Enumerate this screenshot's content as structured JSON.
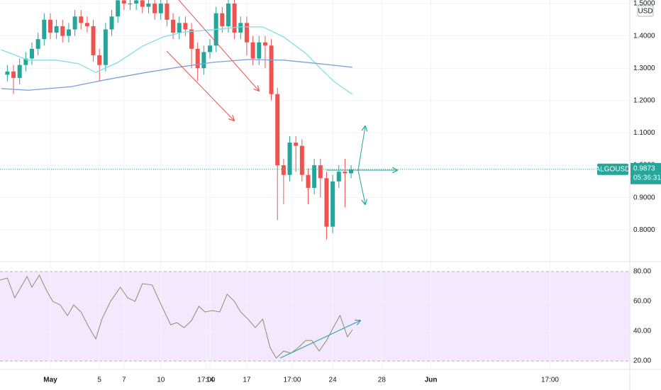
{
  "chart_data": [
    {
      "type": "candlestick",
      "symbol": "ALGOUSD",
      "currency": "USD",
      "last_price": 0.9873,
      "countdown": "05:36:31",
      "up_color": "#26a69a",
      "down_color": "#ef5350",
      "xlim": [
        -3.1,
        48.2
      ],
      "ylim": [
        0.704,
        1.511
      ],
      "yticks": [
        {
          "value": 1.5,
          "label": "1.5000"
        },
        {
          "value": 1.4,
          "label": "1.4000"
        },
        {
          "value": 1.3,
          "label": "1.3000"
        },
        {
          "value": 1.2,
          "label": "1.2000"
        },
        {
          "value": 1.1,
          "label": "1.1000"
        },
        {
          "value": 1.0,
          "label": "1.0000"
        },
        {
          "value": 0.9,
          "label": "0.9000"
        },
        {
          "value": 0.8,
          "label": "0.8000"
        }
      ],
      "x": [
        -2.5,
        -2,
        -1.5,
        -1,
        -0.5,
        0,
        0.5,
        1,
        1.5,
        2,
        2.5,
        3,
        3.5,
        4,
        4.5,
        5,
        5.5,
        6,
        6.5,
        7,
        7.5,
        8,
        8.5,
        9,
        9.5,
        10,
        10.5,
        11,
        11.5,
        12,
        12.5,
        13,
        13.5,
        14,
        14.5,
        15,
        15.5,
        16,
        16.5,
        17,
        17.5,
        18,
        18.5,
        19,
        19.5,
        20,
        20.5,
        21,
        21.5,
        22,
        22.5,
        23,
        23.5,
        24,
        24.5,
        25,
        25.5
      ],
      "open": [
        1.28,
        1.29,
        1.27,
        1.31,
        1.33,
        1.36,
        1.39,
        1.45,
        1.41,
        1.43,
        1.4,
        1.42,
        1.46,
        1.44,
        1.43,
        1.34,
        1.31,
        1.42,
        1.46,
        1.51,
        1.5,
        1.5,
        1.51,
        1.49,
        1.5,
        1.47,
        1.5,
        1.45,
        1.41,
        1.44,
        1.42,
        1.36,
        1.3,
        1.35,
        1.37,
        1.47,
        1.43,
        1.5,
        1.41,
        1.44,
        1.38,
        1.33,
        1.38,
        1.37,
        1.22,
        1.0,
        0.97,
        1.07,
        1.06,
        0.97,
        0.93,
        1.0,
        0.96,
        0.81,
        0.95,
        0.98,
        0.975
      ],
      "high": [
        1.31,
        1.31,
        1.33,
        1.35,
        1.38,
        1.41,
        1.47,
        1.47,
        1.45,
        1.45,
        1.44,
        1.48,
        1.48,
        1.46,
        1.45,
        1.36,
        1.44,
        1.48,
        1.53,
        1.53,
        1.53,
        1.53,
        1.53,
        1.52,
        1.52,
        1.52,
        1.52,
        1.47,
        1.46,
        1.46,
        1.44,
        1.38,
        1.37,
        1.39,
        1.49,
        1.49,
        1.52,
        1.52,
        1.46,
        1.46,
        1.4,
        1.4,
        1.4,
        1.39,
        1.24,
        1.02,
        1.09,
        1.09,
        1.08,
        0.99,
        1.02,
        1.02,
        0.98,
        0.97,
        1.0,
        1.02,
        1.0
      ],
      "low": [
        1.26,
        1.22,
        1.25,
        1.29,
        1.31,
        1.34,
        1.37,
        1.39,
        1.39,
        1.38,
        1.38,
        1.4,
        1.42,
        1.41,
        1.32,
        1.26,
        1.29,
        1.4,
        1.44,
        1.48,
        1.48,
        1.48,
        1.47,
        1.47,
        1.45,
        1.45,
        1.43,
        1.39,
        1.39,
        1.4,
        1.3,
        1.26,
        1.28,
        1.33,
        1.35,
        1.41,
        1.41,
        1.39,
        1.39,
        1.34,
        1.31,
        1.31,
        1.3,
        1.2,
        0.83,
        0.88,
        0.95,
        0.98,
        0.95,
        0.88,
        0.91,
        0.9,
        0.77,
        0.79,
        0.93,
        0.87,
        0.96
      ],
      "close": [
        1.29,
        1.27,
        1.31,
        1.33,
        1.36,
        1.39,
        1.45,
        1.41,
        1.43,
        1.4,
        1.42,
        1.46,
        1.44,
        1.43,
        1.34,
        1.31,
        1.42,
        1.46,
        1.51,
        1.5,
        1.5,
        1.51,
        1.49,
        1.5,
        1.47,
        1.5,
        1.45,
        1.41,
        1.44,
        1.42,
        1.36,
        1.3,
        1.35,
        1.37,
        1.47,
        1.43,
        1.5,
        1.41,
        1.44,
        1.38,
        1.33,
        1.38,
        1.37,
        1.22,
        1.0,
        0.97,
        1.07,
        1.06,
        0.97,
        0.93,
        1.0,
        0.96,
        0.81,
        0.95,
        0.98,
        0.975,
        0.987
      ],
      "series": [
        {
          "color": "#80deea",
          "x": [
            -3,
            -0.8,
            1.5,
            3.3,
            4.7,
            6.5,
            8.5,
            10.2,
            11.9,
            14.2,
            16.5,
            18.3,
            20,
            21.8,
            22.9,
            24.1,
            25.6
          ],
          "values": [
            1.357,
            1.325,
            1.325,
            1.314,
            1.287,
            1.318,
            1.368,
            1.397,
            1.412,
            1.419,
            1.428,
            1.428,
            1.397,
            1.346,
            1.303,
            1.259,
            1.219
          ]
        },
        {
          "color": "#7e9fd6",
          "x": [
            -3,
            -0.8,
            2.7,
            5.6,
            8.5,
            11.4,
            14.2,
            17.1,
            20,
            22.9,
            25.6
          ],
          "values": [
            1.237,
            1.232,
            1.243,
            1.265,
            1.285,
            1.303,
            1.318,
            1.327,
            1.325,
            1.314,
            1.303
          ]
        }
      ]
    },
    {
      "type": "line",
      "xlim": [
        -3.1,
        48.2
      ],
      "ylim": [
        14.8,
        86.2
      ],
      "color": "#8d8d6e",
      "band_color": "#f3e8fd",
      "yticks": [
        {
          "value": 80,
          "label": "80.00"
        },
        {
          "value": 60,
          "label": "60.00"
        },
        {
          "value": 40,
          "label": "40.00"
        },
        {
          "value": 20,
          "label": "20.00"
        }
      ],
      "xticks": [
        {
          "value": 1,
          "label": "May"
        },
        5,
        10,
        {
          "value": 13.7,
          "label": "17:00"
        },
        17,
        {
          "value": 20.7,
          "label": "17:00"
        },
        24,
        28,
        {
          "value": 32,
          "label": "Jun"
        },
        7,
        {
          "value": 41.7,
          "label": "17:00"
        },
        14
      ],
      "x": [
        -3.1,
        -2.5,
        -1.9,
        -1.4,
        -0.9,
        -0.5,
        0.1,
        0.7,
        1.2,
        1.8,
        2.4,
        2.9,
        3.5,
        4.1,
        4.7,
        5.2,
        5.9,
        6.7,
        7.3,
        7.9,
        8.5,
        9.3,
        9.9,
        10.8,
        11.3,
        11.9,
        12.5,
        13.1,
        13.6,
        14.2,
        14.8,
        15.4,
        16.0,
        16.5,
        17.1,
        17.7,
        18.3,
        18.9,
        19.4,
        20.0,
        20.6,
        21.2,
        21.8,
        22.3,
        22.9,
        23.5,
        24.1,
        24.6,
        25.2,
        25.6
      ],
      "values": [
        74.3,
        75.7,
        62.4,
        69.5,
        76.7,
        69.5,
        77.6,
        67.1,
        60.0,
        57.6,
        50.5,
        57.6,
        52.9,
        43.3,
        34.8,
        48.1,
        60.0,
        69.5,
        62.4,
        60.0,
        71.9,
        71.0,
        60.0,
        44.3,
        45.7,
        42.4,
        47.1,
        56.7,
        52.9,
        53.8,
        52.9,
        64.8,
        60.0,
        52.9,
        48.1,
        42.4,
        48.1,
        29.0,
        21.9,
        26.7,
        25.2,
        29.0,
        33.8,
        33.8,
        26.7,
        33.8,
        43.3,
        50.5,
        36.2,
        40.9
      ]
    }
  ]
}
